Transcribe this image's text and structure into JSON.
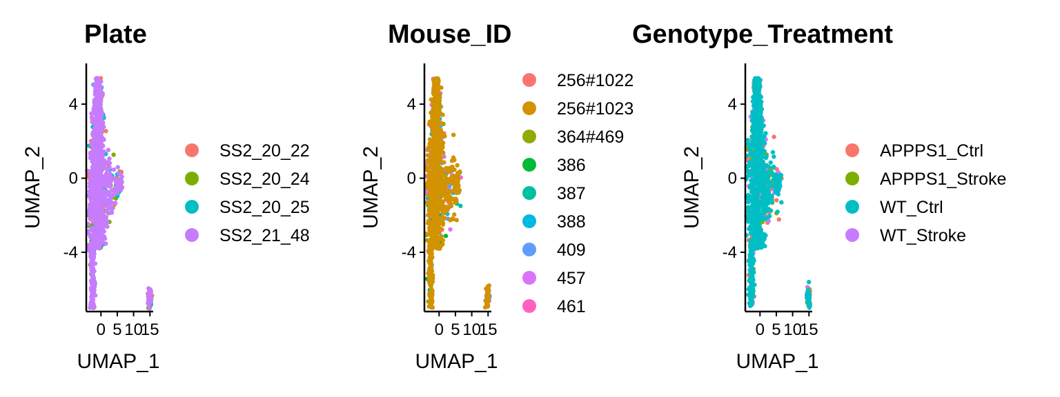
{
  "chart_data": [
    {
      "type": "scatter",
      "title": "Plate",
      "xlabel": "UMAP_1",
      "ylabel": "UMAP_2",
      "xlim": [
        -4.5,
        16
      ],
      "ylim": [
        -7.2,
        6.2
      ],
      "xticks": [
        0,
        5,
        10,
        15
      ],
      "yticks": [
        -4,
        0,
        4
      ],
      "legend": "right",
      "top_series": "SS2_21_48",
      "series": [
        {
          "name": "SS2_20_22",
          "color": "#F8766D"
        },
        {
          "name": "SS2_20_24",
          "color": "#7CAE00"
        },
        {
          "name": "SS2_20_25",
          "color": "#00BFC4"
        },
        {
          "name": "SS2_21_48",
          "color": "#C77CFF"
        }
      ]
    },
    {
      "type": "scatter",
      "title": "Mouse_ID",
      "xlabel": "UMAP_1",
      "ylabel": "UMAP_2",
      "xlim": [
        -4.5,
        16
      ],
      "ylim": [
        -7.2,
        6.2
      ],
      "xticks": [
        0,
        5,
        10,
        15
      ],
      "yticks": [
        -4,
        0,
        4
      ],
      "legend": "right",
      "top_series": "256#1023",
      "series": [
        {
          "name": "256#1022",
          "color": "#F8766D"
        },
        {
          "name": "256#1023",
          "color": "#D39200"
        },
        {
          "name": "364#469",
          "color": "#93AA00"
        },
        {
          "name": "386",
          "color": "#00BA38"
        },
        {
          "name": "387",
          "color": "#00C19F"
        },
        {
          "name": "388",
          "color": "#00B9E3"
        },
        {
          "name": "409",
          "color": "#619CFF"
        },
        {
          "name": "457",
          "color": "#DB72FB"
        },
        {
          "name": "461",
          "color": "#FF61C3"
        }
      ]
    },
    {
      "type": "scatter",
      "title": "Genotype_Treatment",
      "xlabel": "UMAP_1",
      "ylabel": "UMAP_2",
      "xlim": [
        -4.5,
        16
      ],
      "ylim": [
        -7.2,
        6.2
      ],
      "xticks": [
        0,
        5,
        10,
        15
      ],
      "yticks": [
        -4,
        0,
        4
      ],
      "legend": "right",
      "top_series": "WT_Ctrl",
      "series": [
        {
          "name": "APPPS1_Ctrl",
          "color": "#F8766D"
        },
        {
          "name": "APPPS1_Stroke",
          "color": "#7CAE00"
        },
        {
          "name": "WT_Ctrl",
          "color": "#00BFC4"
        },
        {
          "name": "WT_Stroke",
          "color": "#C77CFF"
        }
      ]
    }
  ]
}
